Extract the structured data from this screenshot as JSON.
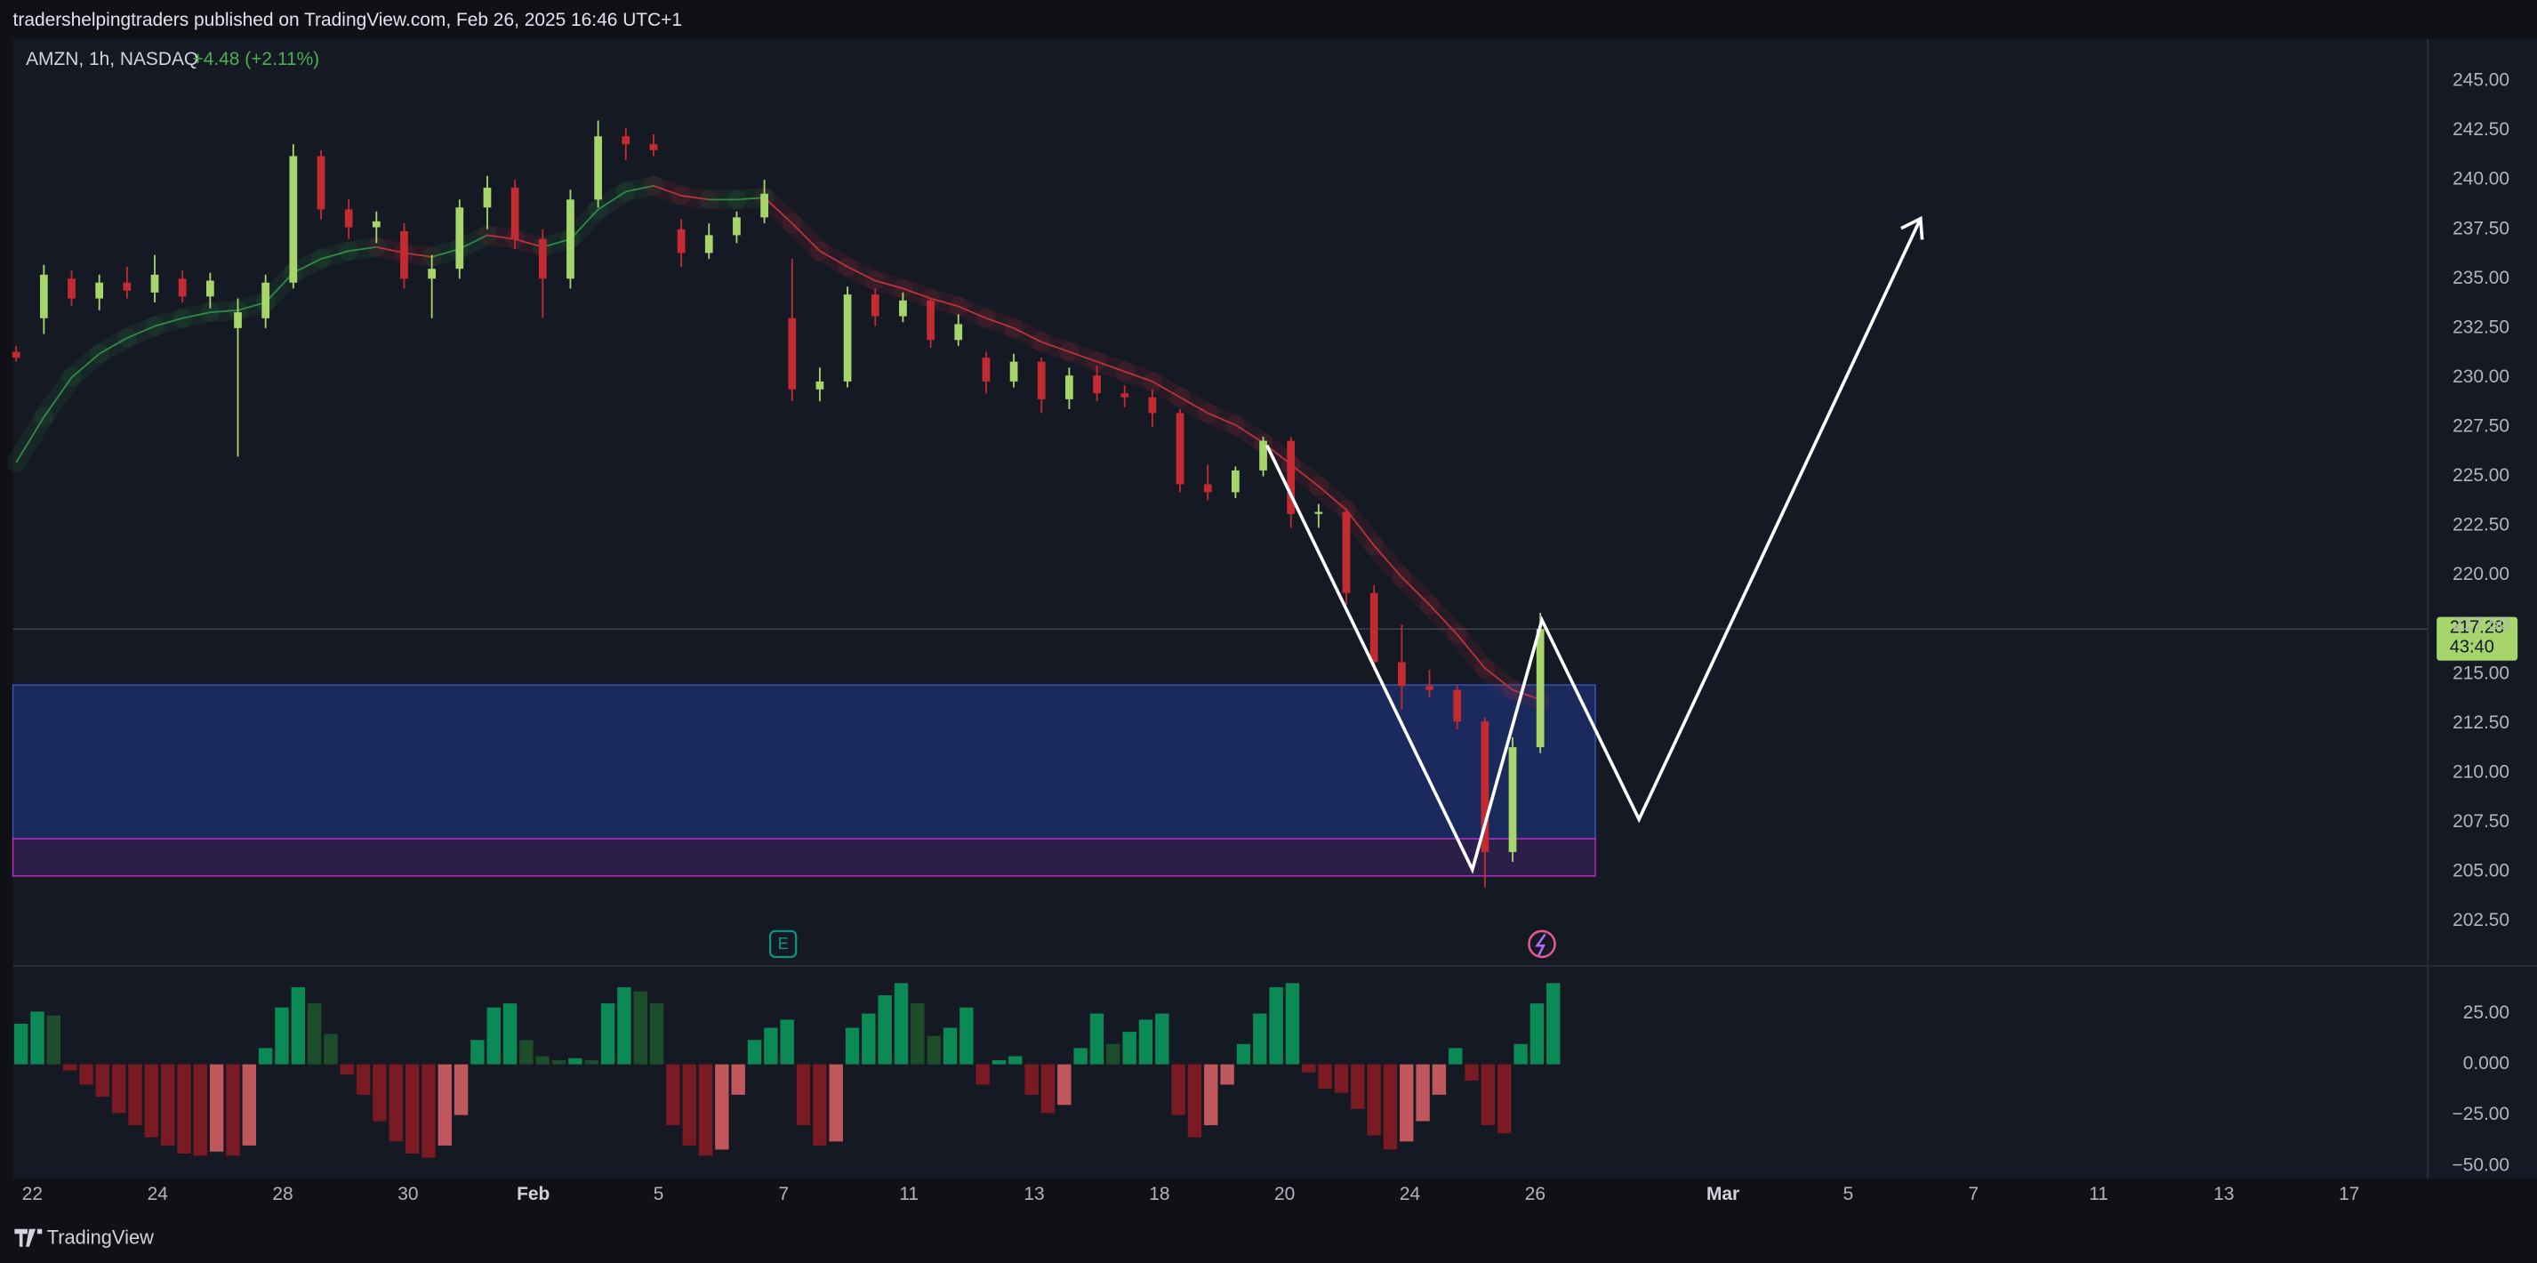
{
  "header": "tradershelpingtraders published on TradingView.com, Feb 26, 2025 16:46 UTC+1",
  "footer": "TradingView",
  "chart_data": [
    {
      "type": "candlestick",
      "symbol": "AMZN, 1h, NASDAQ",
      "change": "+4.48 (+2.11%)",
      "up_color": "#a6d66b",
      "down_color": "#c42b31",
      "ema_up_color": "#2e8b45",
      "ema_down_color": "#b8343a",
      "candles": [
        [
          231.3,
          231.6,
          230.8,
          231.0
        ],
        [
          233,
          235.7,
          232.2,
          235.2
        ],
        [
          235,
          235.4,
          233.6,
          234
        ],
        [
          234,
          235.2,
          233.4,
          234.8
        ],
        [
          234.8,
          235.6,
          234,
          234.4
        ],
        [
          234.3,
          236.2,
          233.8,
          235.2
        ],
        [
          235,
          235.4,
          233.8,
          234.1
        ],
        [
          234.1,
          235.3,
          233.5,
          234.9
        ],
        [
          232.5,
          234,
          226,
          233.3
        ],
        [
          233,
          235.2,
          232.5,
          234.8
        ],
        [
          234.8,
          241.8,
          234.5,
          241.2
        ],
        [
          241.2,
          241.5,
          238,
          238.5
        ],
        [
          238.5,
          239,
          237,
          237.6
        ],
        [
          237.6,
          238.4,
          236.8,
          237.9
        ],
        [
          237.4,
          237.8,
          234.5,
          235
        ],
        [
          235,
          236.2,
          233,
          235.5
        ],
        [
          235.5,
          239,
          235,
          238.6
        ],
        [
          238.6,
          240.2,
          237.5,
          239.6
        ],
        [
          239.6,
          240,
          236.5,
          237
        ],
        [
          237,
          237.5,
          233,
          235
        ],
        [
          235,
          239.5,
          234.5,
          239
        ],
        [
          239,
          243,
          238.6,
          242.2
        ],
        [
          242.2,
          242.6,
          241,
          241.8
        ],
        [
          241.8,
          242.3,
          241.2,
          241.5
        ],
        [
          237.5,
          238,
          235.6,
          236.3
        ],
        [
          236.3,
          237.8,
          236,
          237.2
        ],
        [
          237.2,
          238.4,
          236.8,
          238.1
        ],
        [
          238.1,
          240,
          237.8,
          239.3
        ],
        [
          233,
          236,
          228.8,
          229.4
        ],
        [
          229.4,
          230.5,
          228.8,
          229.8
        ],
        [
          229.8,
          234.6,
          229.5,
          234.2
        ],
        [
          234.2,
          234.5,
          232.6,
          233.1
        ],
        [
          233.1,
          234.3,
          232.8,
          233.9
        ],
        [
          233.9,
          234,
          231.5,
          231.9
        ],
        [
          231.9,
          233.2,
          231.6,
          232.7
        ],
        [
          231,
          231.3,
          229.2,
          229.8
        ],
        [
          229.8,
          231.2,
          229.5,
          230.8
        ],
        [
          230.8,
          231,
          228.2,
          228.9
        ],
        [
          228.9,
          230.5,
          228.4,
          230.1
        ],
        [
          230.1,
          230.6,
          228.8,
          229.2
        ],
        [
          229.2,
          229.6,
          228.5,
          229
        ],
        [
          229,
          229.4,
          227.5,
          228.2
        ],
        [
          228.2,
          228.4,
          224.2,
          224.6
        ],
        [
          224.6,
          225.6,
          223.8,
          224.2
        ],
        [
          224.2,
          225.5,
          223.9,
          225.3
        ],
        [
          225.3,
          227,
          225,
          226.8
        ],
        [
          226.8,
          227,
          222.4,
          223.1
        ],
        [
          223.1,
          223.6,
          222.4,
          223.2
        ],
        [
          223.2,
          223.4,
          218.5,
          219.1
        ],
        [
          219.1,
          219.5,
          215.2,
          215.6
        ],
        [
          215.6,
          217.5,
          213.2,
          214.4
        ],
        [
          214.4,
          215.2,
          213.8,
          214.2
        ],
        [
          214.2,
          214.4,
          212.2,
          212.6
        ],
        [
          212.6,
          212.8,
          204.2,
          206
        ],
        [
          206,
          211.8,
          205.5,
          211.3
        ],
        [
          211.3,
          218.1,
          211,
          217.28
        ]
      ],
      "ema": [
        225.7,
        228,
        230,
        231.2,
        232,
        232.6,
        233,
        233.3,
        233.4,
        233.8,
        235.3,
        236,
        236.4,
        236.6,
        236.3,
        236.1,
        236.5,
        237.2,
        237,
        236.6,
        237,
        238.5,
        239.4,
        239.7,
        239.2,
        239,
        239,
        239.1,
        237.8,
        236.4,
        235.6,
        234.9,
        234.5,
        234,
        233.6,
        233,
        232.5,
        231.8,
        231.3,
        230.8,
        230.3,
        229.8,
        229,
        228.2,
        227.6,
        226.7,
        225.6,
        224.5,
        223.3,
        221.5,
        219.9,
        218.5,
        217,
        215.3,
        214.2,
        213.7
      ],
      "ylim": [
        200.28,
        247.13
      ],
      "yticks": [
        {
          "value": 245,
          "label": "245.00"
        },
        {
          "value": 242.5,
          "label": "242.50"
        },
        {
          "value": 240,
          "label": "240.00"
        },
        {
          "value": 237.5,
          "label": "237.50"
        },
        {
          "value": 235,
          "label": "235.00"
        },
        {
          "value": 232.5,
          "label": "232.50"
        },
        {
          "value": 230,
          "label": "230.00"
        },
        {
          "value": 227.5,
          "label": "227.50"
        },
        {
          "value": 225,
          "label": "225.00"
        },
        {
          "value": 222.5,
          "label": "222.50"
        },
        {
          "value": 220,
          "label": "220.00"
        },
        {
          "value": 217.5,
          "label": "217.50"
        },
        {
          "value": 215,
          "label": "215.00"
        },
        {
          "value": 212.5,
          "label": "212.50"
        },
        {
          "value": 210,
          "label": "210.00"
        },
        {
          "value": 207.5,
          "label": "207.50"
        },
        {
          "value": 205,
          "label": "205.00"
        },
        {
          "value": 202.5,
          "label": "202.50"
        }
      ],
      "last_price": 217.28,
      "countdown": "43:40",
      "event_label": "E",
      "categories": [
        "22",
        null,
        "24",
        null,
        "28",
        null,
        "30",
        null,
        "Feb",
        null,
        "5",
        null,
        "7",
        null,
        "11",
        null,
        "13",
        null,
        "18",
        null,
        "20",
        null,
        "24",
        null,
        "26",
        null,
        null,
        "Mar",
        null,
        "5",
        null,
        "7",
        null,
        "11",
        null,
        "13",
        null,
        "17"
      ]
    },
    {
      "type": "bar",
      "colors": {
        "pos_rise": "#0b8a55",
        "pos_fall": "#1d4d2a",
        "neg_fall": "#7a1a22",
        "neg_rise": "#c0575d"
      },
      "values": [
        20,
        26,
        24,
        -3,
        -10,
        -16,
        -24,
        -30,
        -36,
        -40,
        -44,
        -45,
        -43,
        -45,
        -40,
        8,
        28,
        38,
        30,
        15,
        -5,
        -15,
        -28,
        -38,
        -44,
        -46,
        -40,
        -25,
        12,
        28,
        30,
        12,
        4,
        2,
        3,
        2,
        30,
        38,
        36,
        30,
        -30,
        -40,
        -45,
        -42,
        -15,
        12,
        18,
        22,
        -30,
        -40,
        -38,
        18,
        25,
        34,
        40,
        30,
        14,
        18,
        28,
        -10,
        2,
        4,
        -15,
        -24,
        -20,
        8,
        25,
        10,
        16,
        22,
        25,
        -25,
        -36,
        -30,
        -10,
        10,
        25,
        38,
        40,
        -4,
        -12,
        -14,
        -22,
        -35,
        -42,
        -38,
        -28,
        -15,
        8,
        -8,
        -30,
        -34,
        10,
        30,
        40
      ],
      "ylim": [
        -56.4,
        48.1
      ],
      "yticks": [
        {
          "value": 25,
          "label": "25.00"
        },
        {
          "value": 0,
          "label": "0.000"
        },
        {
          "value": -25,
          "label": "−25.00"
        },
        {
          "value": -50,
          "label": "−50.00"
        }
      ]
    }
  ]
}
